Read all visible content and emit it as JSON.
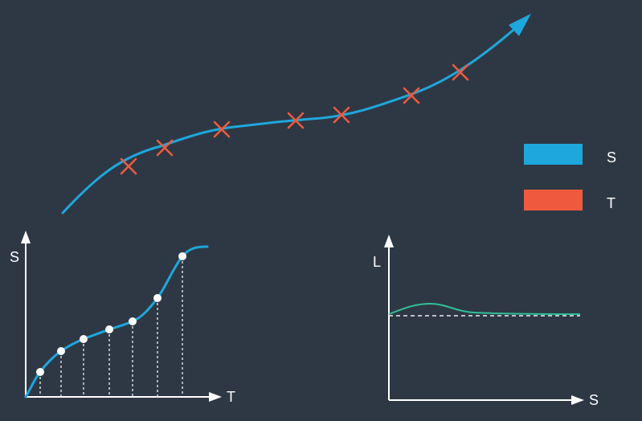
{
  "colors": {
    "background": "#2e3844",
    "path": "#1ea7dc",
    "marker": "#ef5a3f",
    "axis": "#ffffff",
    "lateral": "#2fbf97",
    "reference": "#e8eef0"
  },
  "legend": {
    "items": [
      {
        "label": "S",
        "color": "#1ea7dc"
      },
      {
        "label": "T",
        "color": "#ef5a3f"
      }
    ]
  },
  "st_plot": {
    "y_label": "S",
    "x_label": "T"
  },
  "ls_plot": {
    "y_label": "L",
    "x_label": "S"
  }
}
